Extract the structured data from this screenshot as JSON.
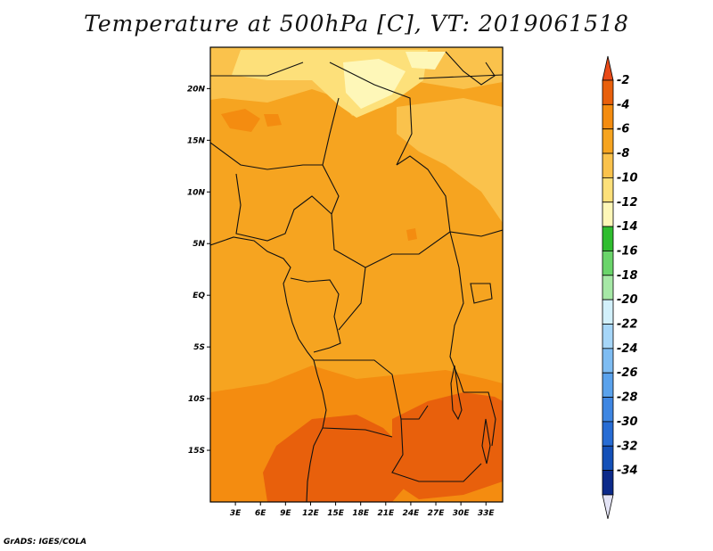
{
  "title": "Temperature at 500hPa [C], VT: 2019061518",
  "credit": "GrADS: IGES/COLA",
  "map": {
    "lon_range": [
      0,
      35
    ],
    "lat_range": [
      -20,
      24
    ],
    "lat_ticks": [
      {
        "value": 20,
        "label": "20N"
      },
      {
        "value": 15,
        "label": "15N"
      },
      {
        "value": 10,
        "label": "10N"
      },
      {
        "value": 5,
        "label": "5N"
      },
      {
        "value": 0,
        "label": "EQ"
      },
      {
        "value": -5,
        "label": "5S"
      },
      {
        "value": -10,
        "label": "10S"
      },
      {
        "value": -15,
        "label": "15S"
      }
    ],
    "lon_ticks": [
      {
        "value": 3,
        "label": "3E"
      },
      {
        "value": 6,
        "label": "6E"
      },
      {
        "value": 9,
        "label": "9E"
      },
      {
        "value": 12,
        "label": "12E"
      },
      {
        "value": 15,
        "label": "15E"
      },
      {
        "value": 18,
        "label": "18E"
      },
      {
        "value": 21,
        "label": "21E"
      },
      {
        "value": 24,
        "label": "24E"
      },
      {
        "value": 27,
        "label": "27E"
      },
      {
        "value": 30,
        "label": "30E"
      },
      {
        "value": 33,
        "label": "33E"
      }
    ]
  },
  "colorbar": {
    "top_arrow_color": "#e84a18",
    "bottom_arrow_color": "#e4e4f6",
    "levels": [
      {
        "label": "-2",
        "color": "#e8600c"
      },
      {
        "label": "-4",
        "color": "#f48c10"
      },
      {
        "label": "-6",
        "color": "#f6a420"
      },
      {
        "label": "-8",
        "color": "#fac24c"
      },
      {
        "label": "-10",
        "color": "#fde07a"
      },
      {
        "label": "-12",
        "color": "#fef7b8"
      },
      {
        "label": "-14",
        "color": "#2fbd2f"
      },
      {
        "label": "-16",
        "color": "#6ad46a"
      },
      {
        "label": "-18",
        "color": "#a6e8a6"
      },
      {
        "label": "-20",
        "color": "#d2f0fb"
      },
      {
        "label": "-22",
        "color": "#a6d6f8"
      },
      {
        "label": "-24",
        "color": "#7ebcf2"
      },
      {
        "label": "-26",
        "color": "#5aa2ec"
      },
      {
        "label": "-28",
        "color": "#3e86e2"
      },
      {
        "label": "-30",
        "color": "#276cd4"
      },
      {
        "label": "-32",
        "color": "#1450b8"
      },
      {
        "label": "-34",
        "color": "#0c2a8a"
      }
    ]
  }
}
